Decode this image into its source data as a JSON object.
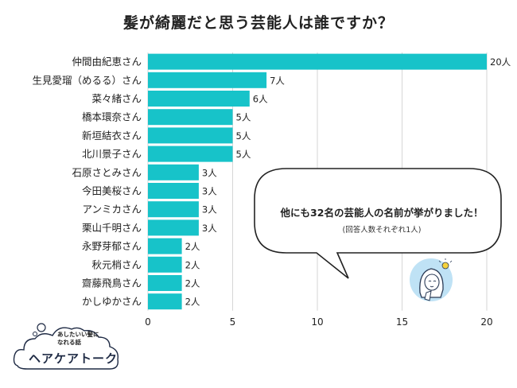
{
  "chart_data": {
    "type": "bar",
    "orientation": "horizontal",
    "title": "髪が綺麗だと思う芸能人は誰ですか？",
    "categories": [
      "仲間由紀恵さん",
      "生見愛瑠（めるる）さん",
      "菜々緒さん",
      "橋本環奈さん",
      "新垣結衣さん",
      "北川景子さん",
      "石原さとみさん",
      "今田美桜さん",
      "アンミカさん",
      "栗山千明さん",
      "永野芽郁さん",
      "秋元梢さん",
      "齋藤飛鳥さん",
      "かしゆかさん"
    ],
    "values": [
      20,
      7,
      6,
      5,
      5,
      5,
      3,
      3,
      3,
      3,
      2,
      2,
      2,
      2
    ],
    "value_labels": [
      "20人",
      "7人",
      "6人",
      "5人",
      "5人",
      "5人",
      "3人",
      "3人",
      "3人",
      "3人",
      "2人",
      "2人",
      "2人",
      "2人"
    ],
    "x_ticks": [
      "0",
      "5",
      "10",
      "15",
      "20"
    ],
    "xlim": [
      0,
      20
    ],
    "grid": true,
    "bar_color": "#17c3c9"
  },
  "bubble": {
    "main": "他にも32名の芸能人の名前が挙がりました！",
    "note": "(回答人数それぞれ1人)"
  },
  "logo": {
    "tagline_1": "あしたいい髪に",
    "tagline_2": "なれる話",
    "name": "ヘアケアトーク"
  }
}
